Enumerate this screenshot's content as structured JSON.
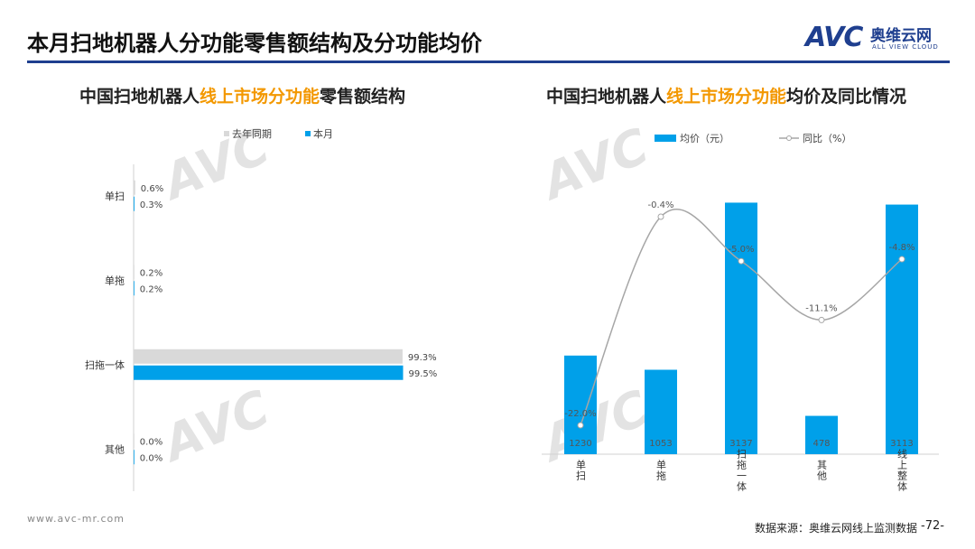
{
  "header": {
    "title": "本月扫地机器人分功能零售额结构及分功能均价",
    "logo_mark": "AVC",
    "logo_cn": "奥维云网",
    "logo_en": "ALL VIEW CLOUD",
    "rule_color": "#1f3f8f"
  },
  "left_chart": {
    "title_pre": "中国扫地机器人",
    "title_highlight": "线上市场分功能",
    "title_post": "零售额结构"
  },
  "right_chart": {
    "title_pre": "中国扫地机器人",
    "title_highlight": "线上市场分功能",
    "title_post": "均价及同比情况"
  },
  "chart_data": [
    {
      "type": "bar",
      "orientation": "horizontal",
      "categories": [
        "单扫",
        "单拖",
        "扫拖一体",
        "其他"
      ],
      "series": [
        {
          "name": "去年同期",
          "values": [
            0.6,
            0.2,
            99.3,
            0.0
          ],
          "labels": [
            "0.6%",
            "0.2%",
            "99.3%",
            "0.0%"
          ],
          "color": "#d9d9d9"
        },
        {
          "name": "本月",
          "values": [
            0.3,
            0.2,
            99.5,
            0.0
          ],
          "labels": [
            "0.3%",
            "0.2%",
            "99.5%",
            "0.0%"
          ],
          "color": "#00a0e9"
        }
      ],
      "xlim": [
        0,
        100
      ],
      "legend": "top",
      "grid": false
    },
    {
      "type": "bar",
      "categories": [
        "单扫",
        "单拖",
        "扫拖一体",
        "其他",
        "线上整体"
      ],
      "series": [
        {
          "name": "均价（元）",
          "type": "bar",
          "values": [
            1230,
            1053,
            3137,
            478,
            3113
          ],
          "labels": [
            "1230",
            "1053",
            "3137",
            "478",
            "3113"
          ],
          "color": "#00a0e9"
        },
        {
          "name": "同比（%）",
          "type": "line",
          "values": [
            -22.0,
            -0.4,
            -5.0,
            -11.1,
            -4.8
          ],
          "labels": [
            "-22.0%",
            "-0.4%",
            "-5.0%",
            "-11.1%",
            "-4.8%"
          ],
          "color": "#a6a6a6"
        }
      ],
      "legend": "top",
      "grid": false
    }
  ],
  "footer": {
    "url": "www.avc-mr.com",
    "source": "数据来源：奥维云网线上监测数据",
    "page": "-72-"
  }
}
